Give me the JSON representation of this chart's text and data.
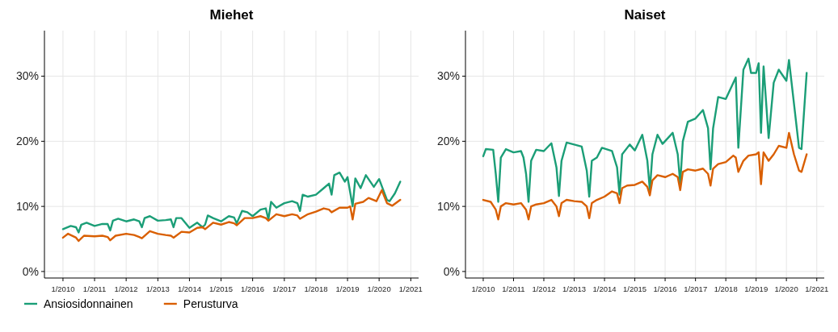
{
  "chart_data": [
    {
      "type": "line",
      "title": "Miehet",
      "xlim": [
        "2009-06",
        "2021-04"
      ],
      "ylim": [
        -1,
        37
      ],
      "xticks": [
        {
          "value": "2010-01",
          "label": "1/2010"
        },
        {
          "value": "2011-01",
          "label": "1/2011"
        },
        {
          "value": "2012-01",
          "label": "1/2012"
        },
        {
          "value": "2013-01",
          "label": "1/2013"
        },
        {
          "value": "2014-01",
          "label": "1/2014"
        },
        {
          "value": "2015-01",
          "label": "1/2015"
        },
        {
          "value": "2016-01",
          "label": "1/2016"
        },
        {
          "value": "2017-01",
          "label": "1/2017"
        },
        {
          "value": "2018-01",
          "label": "1/2018"
        },
        {
          "value": "2019-01",
          "label": "1/2019"
        },
        {
          "value": "2020-01",
          "label": "1/2020"
        },
        {
          "value": "2021-01",
          "label": "1/2021"
        }
      ],
      "yticks": [
        {
          "value": 0,
          "label": "0%"
        },
        {
          "value": 10,
          "label": "10%"
        },
        {
          "value": 20,
          "label": "20%"
        },
        {
          "value": 30,
          "label": "30%"
        }
      ],
      "grid": true,
      "legend": "bottom",
      "line_style": "solid",
      "marker": "none",
      "series": [
        {
          "name": "Ansiosidonnainen",
          "color": "#1b9e77",
          "x": [
            "2010-01",
            "2010-04",
            "2010-06",
            "2010-07",
            "2010-08",
            "2010-10",
            "2011-01",
            "2011-04",
            "2011-06",
            "2011-07",
            "2011-08",
            "2011-10",
            "2012-01",
            "2012-04",
            "2012-06",
            "2012-07",
            "2012-08",
            "2012-10",
            "2013-01",
            "2013-04",
            "2013-06",
            "2013-07",
            "2013-08",
            "2013-10",
            "2014-01",
            "2014-04",
            "2014-06",
            "2014-07",
            "2014-08",
            "2014-10",
            "2015-01",
            "2015-04",
            "2015-06",
            "2015-07",
            "2015-09",
            "2015-11",
            "2016-01",
            "2016-04",
            "2016-06",
            "2016-07",
            "2016-08",
            "2016-10",
            "2017-01",
            "2017-04",
            "2017-06",
            "2017-07",
            "2017-08",
            "2017-10",
            "2018-01",
            "2018-04",
            "2018-06",
            "2018-07",
            "2018-08",
            "2018-10",
            "2018-12",
            "2019-01",
            "2019-03",
            "2019-04",
            "2019-06",
            "2019-08",
            "2019-11",
            "2020-01",
            "2020-04",
            "2020-05",
            "2020-07",
            "2020-09"
          ],
          "values": [
            6.5,
            7,
            6.8,
            6,
            7.2,
            7.5,
            7,
            7.3,
            7.3,
            6.3,
            7.8,
            8.1,
            7.7,
            8,
            7.7,
            6.8,
            8.2,
            8.5,
            7.8,
            7.9,
            8,
            6.8,
            8.2,
            8.2,
            6.7,
            7.5,
            6.8,
            7.2,
            8.6,
            8.2,
            7.7,
            8.5,
            8.3,
            7.4,
            9.3,
            9.1,
            8.5,
            9.5,
            9.7,
            8,
            10.7,
            9.8,
            10.5,
            10.8,
            10.5,
            9.3,
            11.8,
            11.5,
            11.8,
            12.8,
            13.5,
            11.8,
            14.8,
            15.2,
            13.8,
            14.5,
            10,
            14.3,
            12.8,
            14.8,
            13,
            14.2,
            11,
            10.8,
            12,
            13.8
          ]
        },
        {
          "name": "Perusturva",
          "color": "#d95f02",
          "x": [
            "2010-01",
            "2010-03",
            "2010-06",
            "2010-07",
            "2010-09",
            "2011-01",
            "2011-04",
            "2011-06",
            "2011-07",
            "2011-09",
            "2012-01",
            "2012-04",
            "2012-06",
            "2012-07",
            "2012-10",
            "2013-01",
            "2013-04",
            "2013-06",
            "2013-07",
            "2013-10",
            "2014-01",
            "2014-04",
            "2014-06",
            "2014-07",
            "2014-10",
            "2015-01",
            "2015-04",
            "2015-06",
            "2015-07",
            "2015-10",
            "2016-01",
            "2016-04",
            "2016-06",
            "2016-07",
            "2016-10",
            "2017-01",
            "2017-04",
            "2017-06",
            "2017-07",
            "2017-10",
            "2018-01",
            "2018-04",
            "2018-06",
            "2018-07",
            "2018-10",
            "2019-01",
            "2019-02",
            "2019-03",
            "2019-04",
            "2019-07",
            "2019-09",
            "2019-12",
            "2020-02",
            "2020-04",
            "2020-06",
            "2020-09"
          ],
          "values": [
            5.2,
            5.8,
            5.2,
            4.7,
            5.5,
            5.4,
            5.5,
            5.3,
            4.8,
            5.5,
            5.8,
            5.6,
            5.3,
            5.1,
            6.2,
            5.8,
            5.6,
            5.5,
            5.2,
            6.1,
            6,
            6.7,
            6.8,
            6.5,
            7.5,
            7.2,
            7.6,
            7.4,
            7.1,
            8.2,
            8.2,
            8.5,
            8.2,
            7.8,
            8.8,
            8.5,
            8.8,
            8.6,
            8.1,
            8.8,
            9.2,
            9.7,
            9.5,
            9.1,
            9.8,
            9.8,
            10,
            8,
            10.4,
            10.7,
            11.3,
            10.8,
            12.5,
            10.5,
            10.1,
            11
          ]
        }
      ]
    },
    {
      "type": "line",
      "title": "Naiset",
      "xlim": [
        "2009-06",
        "2021-04"
      ],
      "ylim": [
        -1,
        37
      ],
      "xticks": [
        {
          "value": "2010-01",
          "label": "1/2010"
        },
        {
          "value": "2011-01",
          "label": "1/2011"
        },
        {
          "value": "2012-01",
          "label": "1/2012"
        },
        {
          "value": "2013-01",
          "label": "1/2013"
        },
        {
          "value": "2014-01",
          "label": "1/2014"
        },
        {
          "value": "2015-01",
          "label": "1/2015"
        },
        {
          "value": "2016-01",
          "label": "1/2016"
        },
        {
          "value": "2017-01",
          "label": "1/2017"
        },
        {
          "value": "2018-01",
          "label": "1/2018"
        },
        {
          "value": "2019-01",
          "label": "1/2019"
        },
        {
          "value": "2020-01",
          "label": "1/2020"
        },
        {
          "value": "2021-01",
          "label": "1/2021"
        }
      ],
      "yticks": [
        {
          "value": 0,
          "label": "0%"
        },
        {
          "value": 10,
          "label": "10%"
        },
        {
          "value": 20,
          "label": "20%"
        },
        {
          "value": 30,
          "label": "30%"
        }
      ],
      "grid": true,
      "line_style": "solid",
      "marker": "none",
      "series": [
        {
          "color": "#1b9e77",
          "x": [
            "2010-01",
            "2010-02",
            "2010-05",
            "2010-06",
            "2010-07",
            "2010-08",
            "2010-10",
            "2011-01",
            "2011-04",
            "2011-05",
            "2011-06",
            "2011-07",
            "2011-08",
            "2011-10",
            "2012-01",
            "2012-04",
            "2012-06",
            "2012-07",
            "2012-08",
            "2012-10",
            "2013-01",
            "2013-04",
            "2013-06",
            "2013-07",
            "2013-08",
            "2013-10",
            "2013-12",
            "2014-04",
            "2014-06",
            "2014-07",
            "2014-08",
            "2014-11",
            "2015-01",
            "2015-04",
            "2015-06",
            "2015-07",
            "2015-08",
            "2015-10",
            "2015-12",
            "2016-04",
            "2016-06",
            "2016-07",
            "2016-08",
            "2016-10",
            "2017-01",
            "2017-04",
            "2017-06",
            "2017-07",
            "2017-08",
            "2017-10",
            "2018-01",
            "2018-05",
            "2018-06",
            "2018-08",
            "2018-10",
            "2018-11",
            "2019-01",
            "2019-02",
            "2019-03",
            "2019-04",
            "2019-06",
            "2019-08",
            "2019-10",
            "2020-01",
            "2020-02",
            "2020-06",
            "2020-07",
            "2020-09"
          ],
          "values": [
            17.7,
            18.8,
            18.7,
            15,
            10.7,
            17.5,
            18.8,
            18.3,
            18.5,
            17.5,
            15,
            10.7,
            17,
            18.7,
            18.5,
            19.7,
            16,
            11.6,
            17,
            19.8,
            19.5,
            19.2,
            15.5,
            11.5,
            17,
            17.5,
            19,
            18.5,
            16,
            11.8,
            18,
            19.5,
            18.6,
            21,
            17,
            12.5,
            18,
            21,
            19.6,
            21.3,
            18,
            13.5,
            20,
            23,
            23.5,
            24.8,
            22,
            15.7,
            22,
            26.8,
            26.5,
            29.8,
            19,
            31,
            32.7,
            30.5,
            30.5,
            32,
            21.3,
            31.5,
            20.5,
            29,
            31,
            29.3,
            32.5,
            19,
            18.8,
            30.5
          ]
        },
        {
          "color": "#d95f02",
          "x": [
            "2010-01",
            "2010-04",
            "2010-06",
            "2010-07",
            "2010-08",
            "2010-10",
            "2011-01",
            "2011-04",
            "2011-06",
            "2011-07",
            "2011-08",
            "2011-10",
            "2012-01",
            "2012-04",
            "2012-06",
            "2012-07",
            "2012-08",
            "2012-10",
            "2013-01",
            "2013-04",
            "2013-06",
            "2013-07",
            "2013-08",
            "2013-10",
            "2014-01",
            "2014-04",
            "2014-06",
            "2014-07",
            "2014-08",
            "2014-10",
            "2015-01",
            "2015-04",
            "2015-06",
            "2015-07",
            "2015-08",
            "2015-10",
            "2016-01",
            "2016-04",
            "2016-06",
            "2016-07",
            "2016-08",
            "2016-10",
            "2017-01",
            "2017-04",
            "2017-06",
            "2017-07",
            "2017-08",
            "2017-10",
            "2018-01",
            "2018-04",
            "2018-05",
            "2018-06",
            "2018-08",
            "2018-10",
            "2019-01",
            "2019-02",
            "2019-03",
            "2019-04",
            "2019-06",
            "2019-08",
            "2019-10",
            "2020-01",
            "2020-02",
            "2020-04",
            "2020-06",
            "2020-07",
            "2020-09"
          ],
          "values": [
            11,
            10.7,
            9.5,
            8,
            10,
            10.5,
            10.3,
            10.5,
            9.5,
            8,
            10,
            10.3,
            10.5,
            11,
            10,
            8.5,
            10.5,
            11,
            10.8,
            10.7,
            10,
            8.2,
            10.5,
            11,
            11.5,
            12.3,
            12,
            10.5,
            12.8,
            13.2,
            13.3,
            13.8,
            13,
            11.7,
            14,
            14.8,
            14.5,
            15,
            14.5,
            12.5,
            15.3,
            15.7,
            15.5,
            15.8,
            15,
            13.2,
            15.8,
            16.5,
            16.8,
            17.8,
            17.5,
            15.3,
            17,
            17.8,
            18,
            18.3,
            13.4,
            18.3,
            17,
            18,
            19.3,
            19,
            21.3,
            18,
            15.5,
            15.3,
            18
          ]
        }
      ]
    }
  ]
}
